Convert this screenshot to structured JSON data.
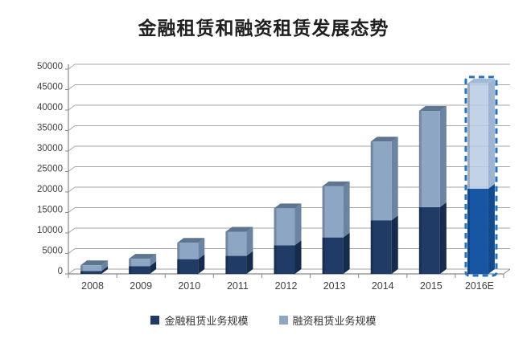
{
  "title": "金融租赁和融资租赁发展态势",
  "chart_data": {
    "type": "bar",
    "stacked": true,
    "projection": "3d",
    "title": "金融租赁和融资租赁发展态势",
    "categories": [
      "2008",
      "2009",
      "2010",
      "2011",
      "2012",
      "2013",
      "2014",
      "2015",
      "2016E"
    ],
    "series": [
      {
        "name": "金融租赁业务规模",
        "color": "#1f3b66",
        "values": [
          700,
          1900,
          3600,
          4400,
          7000,
          8900,
          13100,
          16300,
          20800
        ]
      },
      {
        "name": "融资租赁业务规模",
        "color": "#8da6c4",
        "values": [
          1400,
          1800,
          4000,
          5900,
          9000,
          12500,
          19200,
          23500,
          25700
        ]
      }
    ],
    "totals": [
      2100,
      3700,
      7600,
      10300,
      16000,
      21400,
      32300,
      39800,
      46500
    ],
    "xlabel": "",
    "ylabel": "",
    "ylim": [
      0,
      50000
    ],
    "ytick_step": 5000,
    "yticks": [
      0,
      5000,
      10000,
      15000,
      20000,
      25000,
      30000,
      35000,
      40000,
      45000,
      50000
    ],
    "grid": true,
    "legend_position": "bottom",
    "forecast": {
      "category": "2016E",
      "outline_color": "#2273c8",
      "dark_fill": "#1656a4",
      "light_fill": "#b9cbe3",
      "dark_side": "#134a8e",
      "light_side": "#9db4d2",
      "top_face": "#a3bbd8"
    },
    "colors": {
      "grid": "#a6a6a6",
      "axis": "#8a8a8a",
      "tick_text": "#404040",
      "top_face_light": "#5e7590",
      "side_light": "#6a84a3",
      "side_dark": "#152c4e"
    }
  }
}
